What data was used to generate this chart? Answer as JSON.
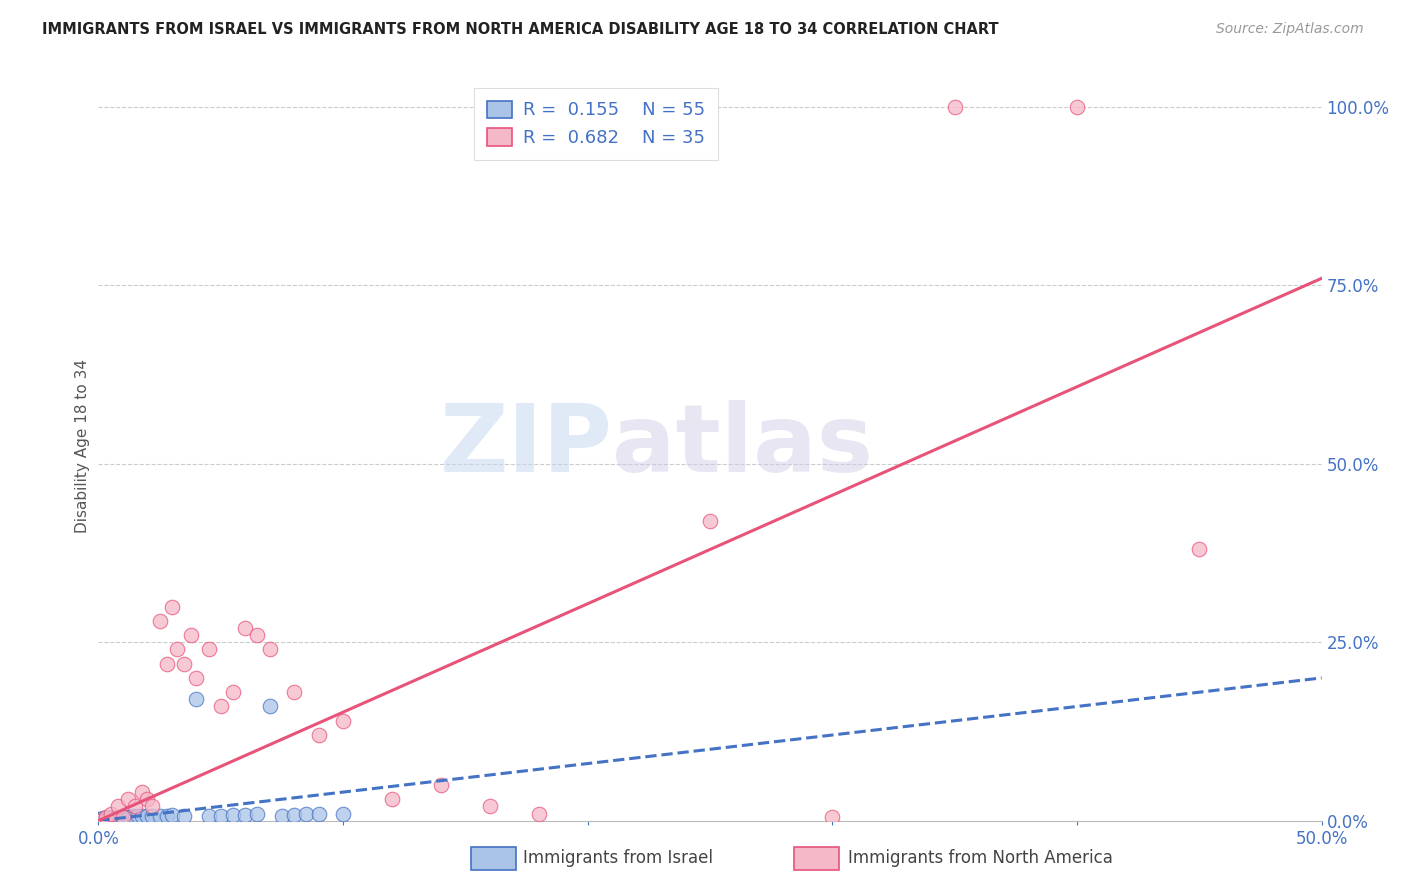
{
  "title": "IMMIGRANTS FROM ISRAEL VS IMMIGRANTS FROM NORTH AMERICA DISABILITY AGE 18 TO 34 CORRELATION CHART",
  "source": "Source: ZipAtlas.com",
  "ylabel": "Disability Age 18 to 34",
  "color_israel": "#aac4e8",
  "color_na": "#f5b8c8",
  "color_israel_line": "#4472c4",
  "color_na_line": "#e8537a",
  "watermark_zip": "ZIP",
  "watermark_atlas": "atlas",
  "legend_israel_r": "0.155",
  "legend_israel_n": "55",
  "legend_na_r": "0.682",
  "legend_na_n": "35",
  "legend_label_israel": "Immigrants from Israel",
  "legend_label_na": "Immigrants from North America",
  "xlim": [
    0.0,
    0.5
  ],
  "ylim": [
    0.0,
    1.05
  ],
  "xticks": [
    0.0,
    0.1,
    0.2,
    0.3,
    0.4,
    0.5
  ],
  "xtick_labels": [
    "0.0%",
    "",
    "",
    "",
    "",
    "50.0%"
  ],
  "yticks": [
    0.0,
    0.25,
    0.5,
    0.75,
    1.0
  ],
  "ytick_labels": [
    "0.0%",
    "25.0%",
    "50.0%",
    "75.0%",
    "100.0%"
  ],
  "israel_line_x": [
    0.0,
    0.5
  ],
  "israel_line_y": [
    0.0,
    0.2
  ],
  "na_line_x": [
    0.0,
    0.5
  ],
  "na_line_y": [
    0.0,
    0.76
  ],
  "israel_x": [
    0.0,
    0.0,
    0.0,
    0.001,
    0.001,
    0.001,
    0.002,
    0.002,
    0.002,
    0.003,
    0.003,
    0.003,
    0.004,
    0.004,
    0.004,
    0.005,
    0.005,
    0.005,
    0.006,
    0.006,
    0.006,
    0.007,
    0.007,
    0.007,
    0.008,
    0.008,
    0.009,
    0.009,
    0.01,
    0.01,
    0.011,
    0.012,
    0.013,
    0.014,
    0.015,
    0.016,
    0.018,
    0.02,
    0.022,
    0.025,
    0.028,
    0.03,
    0.035,
    0.04,
    0.045,
    0.05,
    0.055,
    0.06,
    0.065,
    0.07,
    0.075,
    0.08,
    0.085,
    0.09,
    0.1
  ],
  "israel_y": [
    0.0,
    0.001,
    0.002,
    0.0,
    0.001,
    0.002,
    0.001,
    0.002,
    0.003,
    0.001,
    0.002,
    0.003,
    0.001,
    0.003,
    0.004,
    0.002,
    0.003,
    0.004,
    0.002,
    0.003,
    0.004,
    0.002,
    0.003,
    0.004,
    0.003,
    0.004,
    0.003,
    0.004,
    0.004,
    0.005,
    0.004,
    0.005,
    0.005,
    0.006,
    0.005,
    0.006,
    0.006,
    0.007,
    0.006,
    0.007,
    0.007,
    0.008,
    0.007,
    0.17,
    0.006,
    0.007,
    0.008,
    0.008,
    0.009,
    0.16,
    0.007,
    0.008,
    0.009,
    0.009,
    0.01
  ],
  "na_x": [
    0.0,
    0.003,
    0.005,
    0.008,
    0.01,
    0.012,
    0.015,
    0.018,
    0.02,
    0.022,
    0.025,
    0.028,
    0.03,
    0.032,
    0.035,
    0.038,
    0.04,
    0.045,
    0.05,
    0.055,
    0.06,
    0.065,
    0.07,
    0.08,
    0.09,
    0.1,
    0.12,
    0.14,
    0.16,
    0.18,
    0.25,
    0.3,
    0.35,
    0.4,
    0.45
  ],
  "na_y": [
    0.0,
    0.005,
    0.01,
    0.02,
    0.005,
    0.03,
    0.02,
    0.04,
    0.03,
    0.02,
    0.28,
    0.22,
    0.3,
    0.24,
    0.22,
    0.26,
    0.2,
    0.24,
    0.16,
    0.18,
    0.27,
    0.26,
    0.24,
    0.18,
    0.12,
    0.14,
    0.03,
    0.05,
    0.02,
    0.01,
    0.42,
    0.005,
    1.0,
    1.0,
    0.38
  ]
}
